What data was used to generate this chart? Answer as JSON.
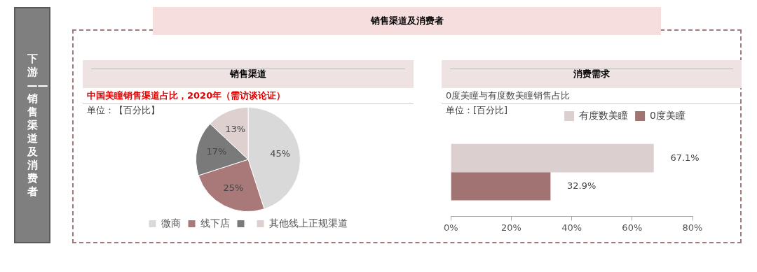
{
  "chart_data": [
    {
      "type": "other",
      "title": "销售渠道及消费者",
      "annotations": [
        "下游——销售渠道及消费者"
      ]
    },
    {
      "type": "pie",
      "title": "销售渠道",
      "subtitle": "中国美瞳销售渠道占比，2020年（需访谈论证）",
      "annotations": [
        "单位：【百分比】"
      ],
      "categories": [
        "微商",
        "线下店",
        null,
        "其他线上正规渠道"
      ],
      "values": [
        45,
        25,
        17,
        13
      ],
      "colors": [
        "#d9d9d9",
        "#a97878",
        "#7a7a7a",
        "#dfd0d0"
      ],
      "value_labels": [
        "45%",
        "25%",
        "17%",
        "13%"
      ],
      "legend": "bottom"
    },
    {
      "type": "bar",
      "orientation": "horizontal",
      "title": "消费需求",
      "subtitle": "0度美瞳与有度数美瞳销售占比",
      "annotations": [
        "单位：[百分比]"
      ],
      "categories": [
        null
      ],
      "series": [
        {
          "name": "有度数美瞳",
          "color": "#dccfcf",
          "values": [
            67.1
          ],
          "value_labels": [
            "67.1%"
          ]
        },
        {
          "name": "0度美瞳",
          "color": "#a27373",
          "values": [
            32.9
          ],
          "value_labels": [
            "32.9%"
          ]
        }
      ],
      "xlim": [
        0,
        80
      ],
      "xticks": [
        {
          "value": 0,
          "label": "0%"
        },
        {
          "value": 20,
          "label": "20%"
        },
        {
          "value": 40,
          "label": "40%"
        },
        {
          "value": 60,
          "label": "60%"
        },
        {
          "value": 80,
          "label": "80%"
        }
      ],
      "grid": false,
      "legend": "top right"
    }
  ]
}
